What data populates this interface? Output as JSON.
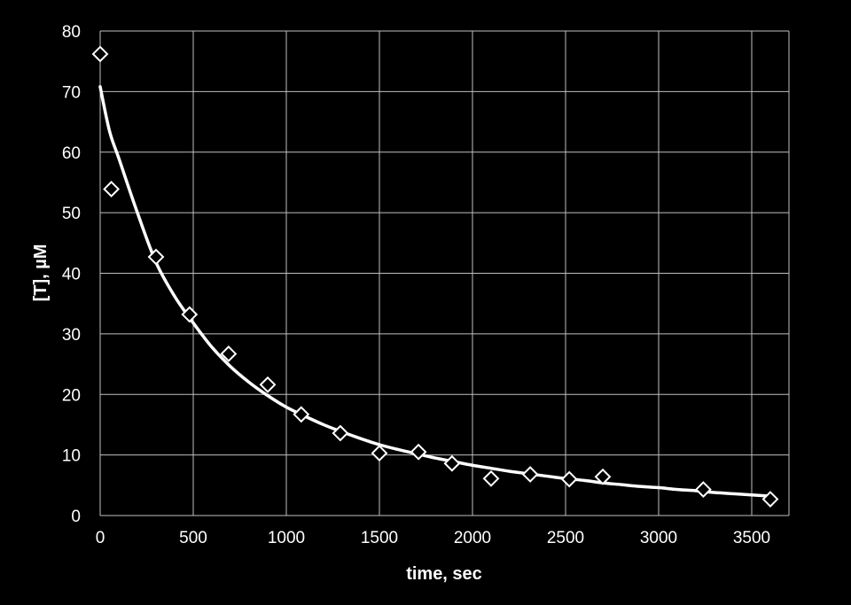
{
  "chart_data": {
    "type": "scatter",
    "title": "",
    "xlabel": "time, sec",
    "ylabel": "[T], µM",
    "xlim": [
      0,
      3700
    ],
    "ylim": [
      0,
      80
    ],
    "xticks": [
      0,
      500,
      1000,
      1500,
      2000,
      2500,
      3000,
      3500
    ],
    "yticks": [
      0,
      10,
      20,
      30,
      40,
      50,
      60,
      70,
      80
    ],
    "grid": true,
    "legend": "none",
    "colors": {
      "background": "#000000",
      "foreground": "#ffffff",
      "grid": "#bfbfbf"
    },
    "series": [
      {
        "marker": "diamond-open",
        "x": [
          0,
          60,
          300,
          480,
          690,
          900,
          1080,
          1290,
          1500,
          1710,
          1890,
          2100,
          2310,
          2520,
          2700,
          3240,
          3600
        ],
        "y": [
          76.2,
          53.9,
          42.7,
          33.2,
          26.7,
          21.6,
          16.7,
          13.6,
          10.3,
          10.5,
          8.6,
          6.1,
          6.8,
          6.0,
          6.4,
          4.3,
          2.7
        ]
      },
      {
        "type": "line",
        "x": [
          0,
          50,
          100,
          200,
          300,
          400,
          500,
          600,
          700,
          800,
          900,
          1000,
          1100,
          1200,
          1300,
          1400,
          1500,
          1600,
          1700,
          1800,
          1900,
          2000,
          2100,
          2200,
          2300,
          2400,
          2500,
          2600,
          2700,
          2800,
          2900,
          3000,
          3100,
          3200,
          3300,
          3400,
          3500,
          3600
        ],
        "y": [
          70.8,
          63.5,
          59.0,
          50.0,
          41.8,
          36.2,
          31.8,
          27.8,
          24.6,
          22.0,
          19.8,
          17.9,
          16.4,
          15.0,
          13.8,
          12.7,
          11.7,
          10.9,
          10.2,
          9.5,
          8.9,
          8.3,
          7.8,
          7.3,
          6.9,
          6.5,
          6.1,
          5.8,
          5.4,
          5.1,
          4.8,
          4.6,
          4.3,
          4.1,
          3.8,
          3.6,
          3.4,
          3.2
        ]
      }
    ]
  }
}
